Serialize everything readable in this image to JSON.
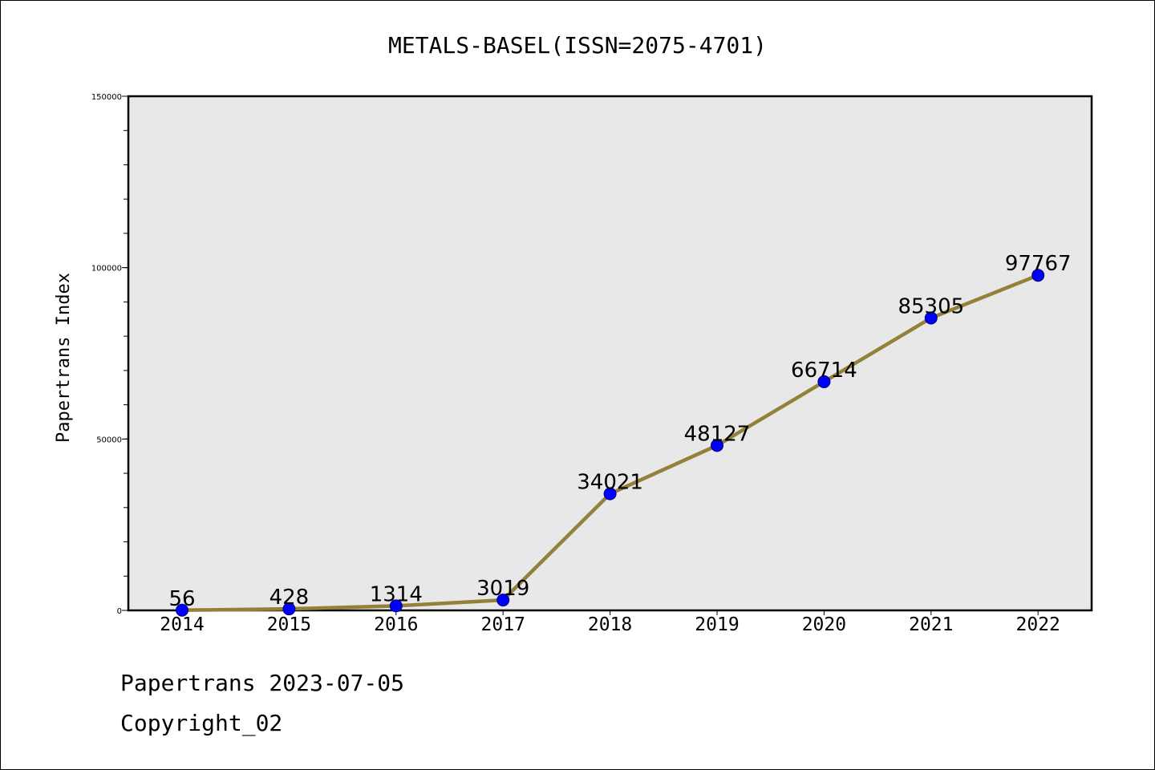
{
  "chart_data": {
    "type": "line",
    "title": "METALS-BASEL(ISSN=2075-4701)",
    "xlabel": "",
    "ylabel": "Papertrans Index",
    "categories": [
      "2014",
      "2015",
      "2016",
      "2017",
      "2018",
      "2019",
      "2020",
      "2021",
      "2022"
    ],
    "series": [
      {
        "values": [
          56,
          428,
          1314,
          3019,
          34021,
          48127,
          66714,
          85305,
          97767
        ]
      }
    ],
    "data_labels": [
      "56",
      "428",
      "1314",
      "3019",
      "34021",
      "48127",
      "66714",
      "85305",
      "97767"
    ],
    "ylim": [
      0,
      150000
    ],
    "y_major_ticks": [
      0,
      50000,
      100000,
      150000
    ],
    "y_tick_labels": [
      "0",
      "50000",
      "100000",
      "150000"
    ],
    "y_minor_step": 10000,
    "grid": false,
    "legend": "none",
    "colors": {
      "line": "#948139",
      "marker_fill": "#0000ff",
      "marker_edge": "#000080",
      "plot_background": "#e8e8e8",
      "axes_edge": "#000000"
    }
  },
  "footer": {
    "date_line": "Papertrans 2023-07-05",
    "copyright_line": "Copyright_02"
  }
}
